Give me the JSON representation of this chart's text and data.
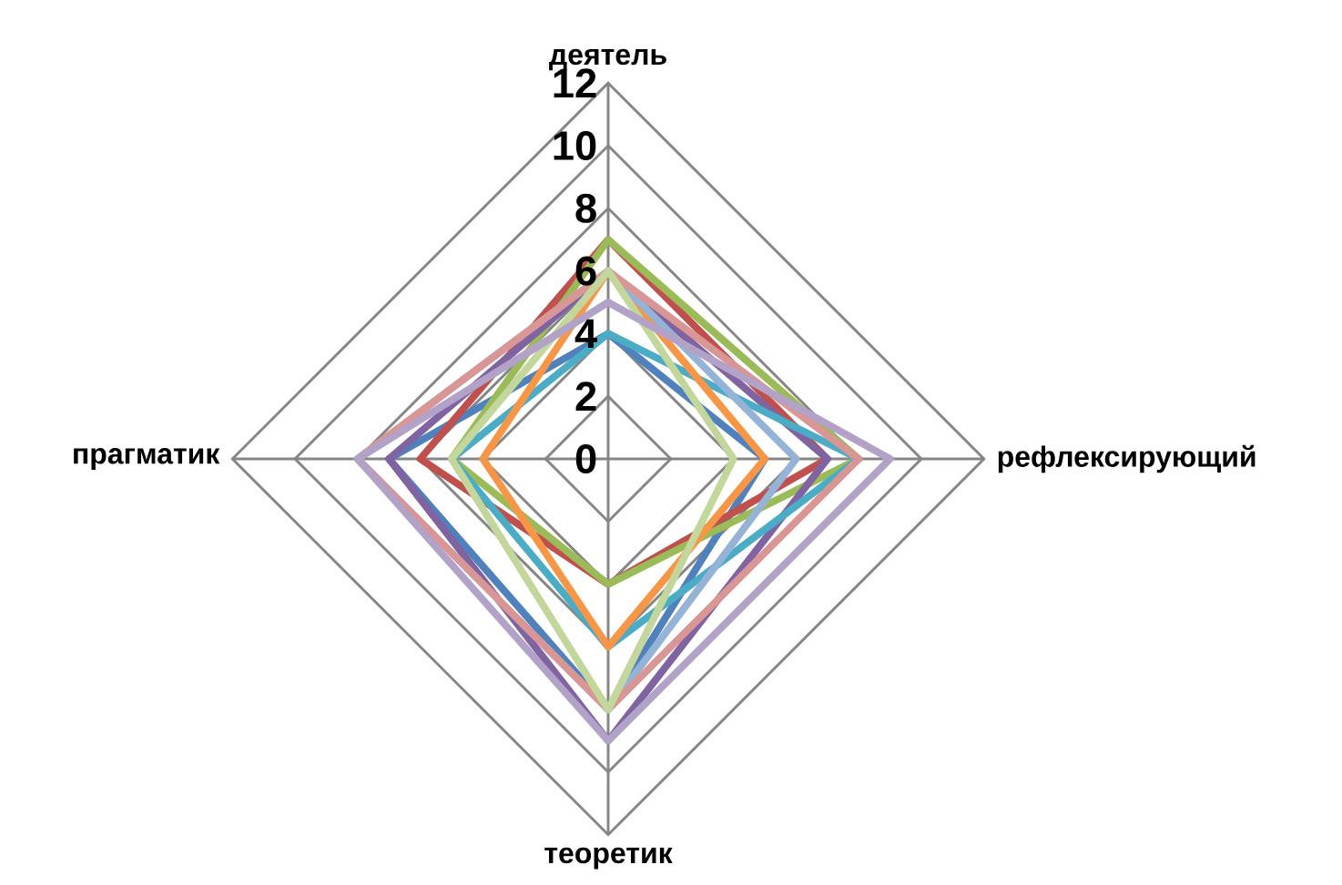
{
  "chart_data": {
    "type": "radar",
    "categories": [
      "деятель",
      "рефлексирующий",
      "теоретик",
      "прагматик"
    ],
    "ylim": [
      0,
      12
    ],
    "yticks": [
      0,
      2,
      4,
      6,
      8,
      10,
      12
    ],
    "grid": true,
    "series": [
      {
        "color": "#4f81bd",
        "values": [
          4,
          5,
          8,
          7
        ]
      },
      {
        "color": "#c0504d",
        "values": [
          7,
          7,
          4,
          6
        ]
      },
      {
        "color": "#9bbb59",
        "values": [
          7,
          8,
          4,
          5
        ]
      },
      {
        "color": "#8064a2",
        "values": [
          6,
          7,
          9,
          7
        ]
      },
      {
        "color": "#4bacc6",
        "values": [
          4,
          8,
          6,
          5
        ]
      },
      {
        "color": "#f79646",
        "values": [
          6,
          5,
          6,
          4
        ]
      },
      {
        "color": "#95b3d7",
        "values": [
          6,
          6,
          8,
          8
        ]
      },
      {
        "color": "#d99694",
        "values": [
          6,
          8,
          8,
          8
        ]
      },
      {
        "color": "#c3d69b",
        "values": [
          6,
          4,
          8,
          5
        ]
      },
      {
        "color": "#b2a2c7",
        "values": [
          5,
          9,
          9,
          8
        ]
      }
    ]
  }
}
